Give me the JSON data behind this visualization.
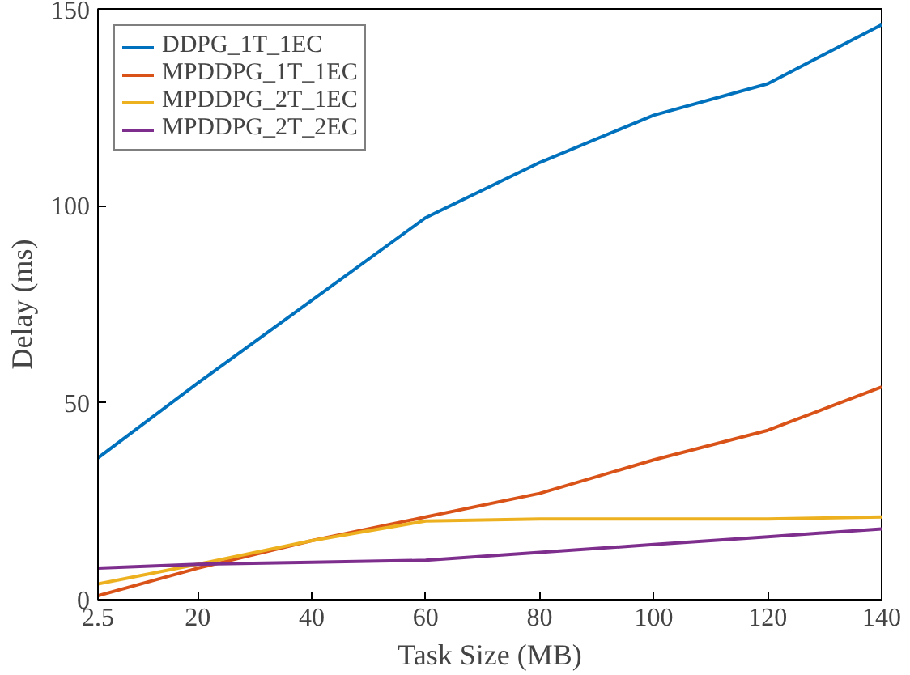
{
  "chart_data": {
    "type": "line",
    "xlabel": "Task Size (MB)",
    "ylabel": "Delay (ms)",
    "x": [
      2.5,
      20,
      40,
      60,
      80,
      100,
      120,
      140
    ],
    "xlim": [
      2.5,
      140
    ],
    "xticks": [
      2.5,
      20,
      40,
      60,
      80,
      100,
      120,
      140
    ],
    "ylim": [
      0,
      150
    ],
    "yticks": [
      0,
      50,
      100,
      150
    ],
    "grid": false,
    "legend": "top left",
    "line_style": "solid",
    "series": [
      {
        "name": "DDPG_1T_1EC",
        "color": "#0072bd",
        "values": [
          36,
          55,
          76,
          97,
          111,
          123,
          131,
          146
        ]
      },
      {
        "name": "MPDDPG_1T_1EC",
        "color": "#d95319",
        "values": [
          1,
          8,
          15,
          21,
          27,
          35.5,
          43,
          54
        ]
      },
      {
        "name": "MPDDPG_2T_1EC",
        "color": "#edb120",
        "values": [
          4,
          9,
          15,
          20,
          20.5,
          20.5,
          20.5,
          21
        ]
      },
      {
        "name": "MPDDPG_2T_2EC",
        "color": "#7e2f8e",
        "values": [
          8,
          9,
          9.5,
          10,
          12,
          14,
          16,
          18
        ]
      }
    ]
  }
}
